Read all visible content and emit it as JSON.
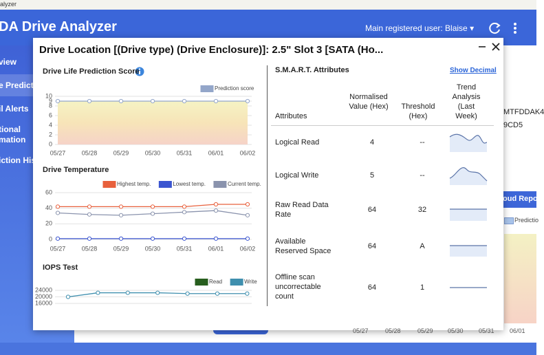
{
  "window": {
    "title": "alyzer"
  },
  "header": {
    "app_name": "DA Drive Analyzer",
    "user": "Main registered user: Blaise"
  },
  "sidebar": {
    "items": [
      "view",
      "e Predicti",
      "il Alerts",
      "tional",
      "mation",
      "iction His"
    ]
  },
  "background": {
    "model": "MTFDDAK4",
    "serial": "9CD5",
    "card_title": "oud Repor",
    "legend": "Predictio",
    "dates": [
      "05/27",
      "05/28",
      "05/29",
      "05/30",
      "05/31",
      "06/01"
    ]
  },
  "modal": {
    "title": "Drive Location [(Drive type) (Drive Enclosure)]: 2.5\" Slot 3 [SATA (Ho...",
    "smart": {
      "title": "S.M.A.R.T. Attributes",
      "toggle": "Show Decimal",
      "columns": [
        "Attributes",
        "Normalised Value (Hex)",
        "Threshold (Hex)",
        "Trend Analysis (Last Week)"
      ],
      "rows": [
        [
          "Logical Read",
          "4",
          "--"
        ],
        [
          "Logical Write",
          "5",
          "--"
        ],
        [
          "Raw Read Data Rate",
          "64",
          "32"
        ],
        [
          "Available Reserved Space",
          "64",
          "A"
        ],
        [
          "Offline scan uncorrectable count",
          "64",
          "1"
        ]
      ]
    }
  },
  "chart_data": [
    {
      "type": "line",
      "title": "Drive Life Prediction Score",
      "area": true,
      "grid": true,
      "categories": [
        "05/27",
        "05/28",
        "05/29",
        "05/30",
        "05/31",
        "06/01",
        "06/02"
      ],
      "series": [
        {
          "name": "Prediction score",
          "color": "#93a6c9",
          "values": [
            9,
            9,
            9,
            9,
            9,
            9,
            9
          ]
        }
      ],
      "ylim": [
        0,
        10
      ],
      "yticks": [
        0,
        2,
        4,
        6,
        8,
        9,
        10
      ]
    },
    {
      "type": "line",
      "title": "Drive Temperature",
      "grid": true,
      "categories": [
        "05/27",
        "05/28",
        "05/29",
        "05/30",
        "05/31",
        "06/01",
        "06/02"
      ],
      "series": [
        {
          "name": "Highest temp.",
          "color": "#e8603c",
          "values": [
            42,
            42,
            42,
            42,
            42,
            45,
            45
          ]
        },
        {
          "name": "Lowest temp.",
          "color": "#3b55d0",
          "values": [
            1,
            1,
            1,
            1,
            1,
            1,
            1
          ]
        },
        {
          "name": "Current temp.",
          "color": "#8a93ad",
          "values": [
            34,
            32,
            31,
            33,
            35,
            37,
            31
          ]
        }
      ],
      "ylim": [
        0,
        60
      ],
      "yticks": [
        0,
        20,
        40,
        60
      ]
    },
    {
      "type": "line",
      "title": "IOPS Test",
      "grid": true,
      "series": [
        {
          "name": "Read",
          "color": "#275e1e",
          "values": [
            null,
            null,
            null,
            null,
            null,
            null,
            null
          ]
        },
        {
          "name": "Write",
          "color": "#3f8fae",
          "values": [
            20000,
            22500,
            22500,
            22500,
            22000,
            22000,
            22000
          ]
        }
      ],
      "ylim": [
        16000,
        24000
      ],
      "yticks": [
        16000,
        20000,
        24000
      ]
    }
  ]
}
